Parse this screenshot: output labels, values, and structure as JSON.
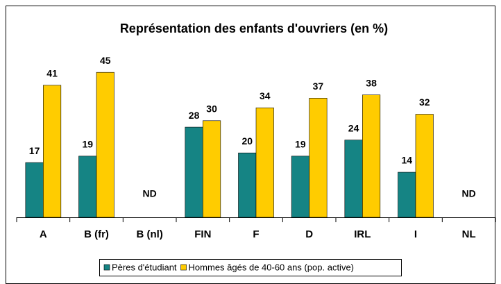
{
  "chart_data": {
    "type": "bar",
    "title": "Représentation des enfants d'ouvriers (en %)",
    "categories": [
      "A",
      "B (fr)",
      "B (nl)",
      "FIN",
      "F",
      "D",
      "IRL",
      "I",
      "NL"
    ],
    "series": [
      {
        "name": "Pères d'étudiant",
        "color": "#158484",
        "values": [
          17,
          19,
          null,
          28,
          20,
          19,
          24,
          14,
          null
        ]
      },
      {
        "name": "Hommes âgés de 40-60 ans (pop. active)",
        "color": "#ffcc00",
        "values": [
          41,
          45,
          null,
          30,
          34,
          37,
          38,
          32,
          null
        ]
      }
    ],
    "annotations": [
      {
        "x": "B (nl)",
        "text": "ND"
      },
      {
        "x": "NL",
        "text": "ND"
      }
    ],
    "ylim": [
      0,
      50
    ],
    "legend": "bottom"
  }
}
